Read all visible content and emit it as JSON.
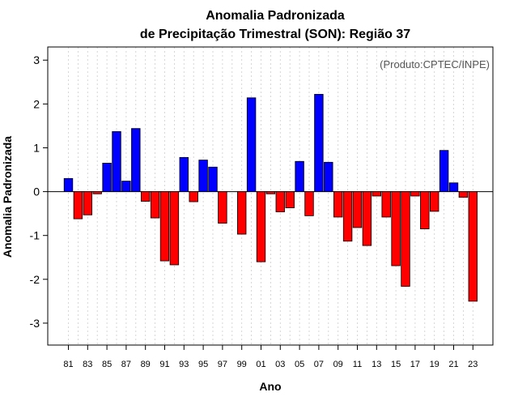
{
  "chart_data": {
    "type": "bar",
    "title_line1": "Anomalia Padronizada",
    "title_line2": "de Precipitação Trimestral (SON): Região 37",
    "xlabel": "Ano",
    "ylabel": "Anomalia Padronizada",
    "source": "(Produto:CPTEC/INPE)",
    "ylim": [
      -3.5,
      3.3
    ],
    "y_ticks": [
      -3,
      -2,
      -1,
      0,
      1,
      2,
      3
    ],
    "grid": "vertical-dashed",
    "colors": {
      "positive": "#0000ff",
      "negative": "#ff0000",
      "outline": "#000000",
      "grid": "#cccccc"
    },
    "categories": [
      "81",
      "82",
      "83",
      "84",
      "85",
      "86",
      "87",
      "88",
      "89",
      "90",
      "91",
      "92",
      "93",
      "94",
      "95",
      "96",
      "97",
      "98",
      "99",
      "00",
      "01",
      "02",
      "03",
      "04",
      "05",
      "06",
      "07",
      "08",
      "09",
      "10",
      "11",
      "12",
      "13",
      "14",
      "15",
      "16",
      "17",
      "18",
      "19",
      "20",
      "21",
      "22",
      "23"
    ],
    "x_tick_labels": [
      "81",
      "83",
      "85",
      "87",
      "89",
      "91",
      "93",
      "95",
      "97",
      "99",
      "01",
      "03",
      "05",
      "07",
      "09",
      "11",
      "13",
      "15",
      "17",
      "19",
      "21",
      "23"
    ],
    "values": [
      0.3,
      -0.62,
      -0.53,
      -0.05,
      0.65,
      1.37,
      0.24,
      1.44,
      -0.22,
      -0.6,
      -1.58,
      -1.67,
      0.78,
      -0.23,
      0.72,
      0.56,
      -0.72,
      0.0,
      -0.97,
      2.14,
      -1.6,
      -0.05,
      -0.46,
      -0.37,
      0.69,
      -0.55,
      2.22,
      0.67,
      -0.58,
      -1.13,
      -0.82,
      -1.23,
      -0.1,
      -0.58,
      -1.69,
      -2.16,
      -0.1,
      -0.85,
      -0.45,
      0.94,
      0.2,
      -0.13,
      -2.5
    ]
  }
}
